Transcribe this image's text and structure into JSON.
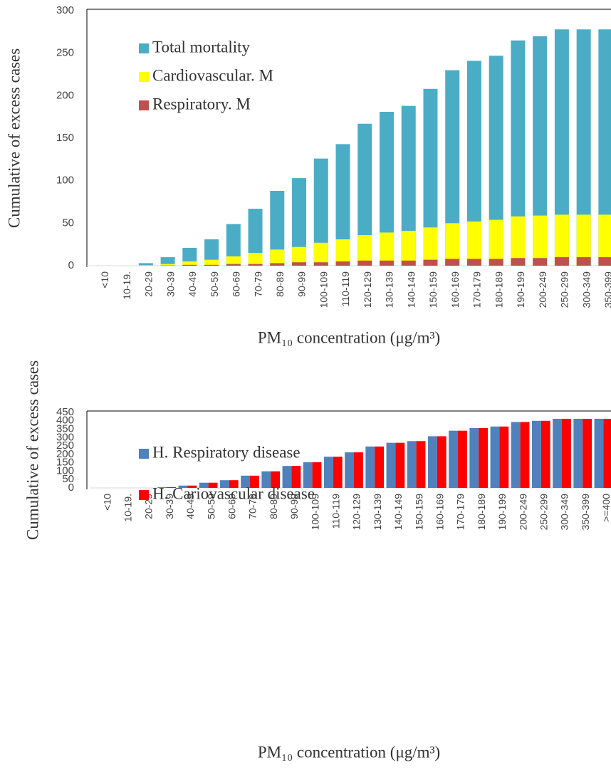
{
  "chart_data": [
    {
      "type": "bar",
      "barmode": "overlay",
      "categories": [
        "<10",
        "10-19.",
        "20-29",
        "30-39",
        "40-49",
        "50-59",
        "60-69",
        "70-79",
        "80-89",
        "90-99",
        "100-109",
        "110-119",
        "120-129",
        "130-139",
        "140-149",
        "150-159",
        "160-169",
        "170-179",
        "180-189",
        "190-199",
        "200-249",
        "250-299",
        "300-349",
        "350-399"
      ],
      "series": [
        {
          "name": "Total mortality",
          "color": "#4bacc6",
          "values": [
            0,
            0,
            3,
            10,
            21,
            31,
            49,
            67,
            88,
            103,
            126,
            143,
            167,
            181,
            188,
            208,
            230,
            241,
            247,
            265,
            270,
            278,
            278,
            278
          ]
        },
        {
          "name": "Cardiovascular. M",
          "color": "#ffff00",
          "values": [
            0,
            0,
            0.5,
            2,
            5,
            7,
            11,
            15,
            19,
            22,
            27,
            31,
            36,
            39,
            41,
            45,
            50,
            52,
            54,
            58,
            59,
            60,
            60,
            60
          ]
        },
        {
          "name": "Respiratory. M",
          "color": "#c0504d",
          "values": [
            0,
            0,
            0,
            0.3,
            1,
            1,
            2,
            2,
            3,
            4,
            4,
            5,
            6,
            6,
            6,
            7,
            8,
            8,
            8,
            9,
            9,
            10,
            10,
            10
          ]
        }
      ],
      "ylim": [
        0,
        300
      ],
      "yticks": [
        0,
        50,
        100,
        150,
        200,
        250,
        300
      ],
      "xlabel": "PM₁₀ concentration (μg/m³)",
      "ylabel": "Cumulative of excess cases"
    },
    {
      "type": "bar",
      "barmode": "group",
      "categories": [
        "<10",
        "10-19.",
        "20-29",
        "30-39",
        "40-49",
        "50-59",
        "60-69",
        "70-79",
        "80-89",
        "90-99",
        "100-109",
        "110-119",
        "120-129",
        "130-139",
        "140-149",
        "150-159",
        "160-169",
        "170-179",
        "180-189",
        "190-199",
        "200-249",
        "250-299",
        "300-349",
        "350-399",
        ">=400"
      ],
      "series": [
        {
          "name": "H. Respiratory disease",
          "color": "#4f81bd",
          "values": [
            0,
            0,
            0,
            5,
            14,
            31,
            46,
            73,
            99,
            131,
            153,
            186,
            212,
            247,
            269,
            279,
            308,
            341,
            357,
            366,
            393,
            400,
            412,
            412,
            412
          ]
        },
        {
          "name": "H. Cariovascular disease",
          "color": "#ff0000",
          "values": [
            0,
            0,
            0,
            5,
            14,
            31,
            46,
            73,
            99,
            131,
            153,
            186,
            212,
            247,
            269,
            279,
            308,
            341,
            357,
            366,
            393,
            400,
            412,
            412,
            412
          ]
        }
      ],
      "ylim": [
        0,
        450
      ],
      "yticks": [
        0,
        50,
        100,
        150,
        200,
        250,
        300,
        350,
        400,
        450
      ],
      "xlabel": "PM₁₀ concentration (μg/m³)",
      "ylabel": "Cumulative of excess cases"
    }
  ]
}
